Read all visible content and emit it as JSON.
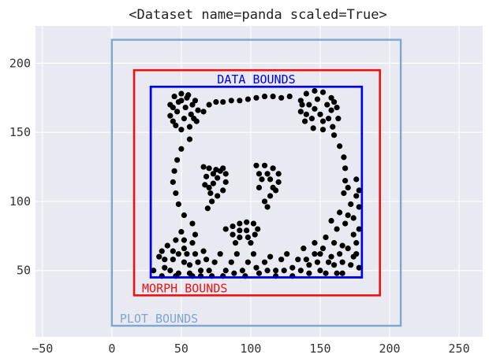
{
  "chart_data": {
    "type": "scatter",
    "title": "<Dataset name=panda scaled=True>",
    "xlabel": "",
    "ylabel": "",
    "xlim": [
      -55,
      267
    ],
    "ylim": [
      2,
      227
    ],
    "x_ticks": [
      -50,
      0,
      50,
      100,
      150,
      200,
      250
    ],
    "y_ticks": [
      50,
      100,
      150,
      200
    ],
    "grid": true,
    "background": "#e9e9f1",
    "point_color": "#000000",
    "bounds": [
      {
        "name": "plot-bounds",
        "label": "PLOT BOUNDS",
        "color": "#7da6d1",
        "x0": 0,
        "x1": 208,
        "y0": 10,
        "y1": 217
      },
      {
        "name": "morph-bounds",
        "label": "MORPH BOUNDS",
        "color": "#ee1111",
        "x0": 16,
        "x1": 193,
        "y0": 32,
        "y1": 195
      },
      {
        "name": "data-bounds",
        "label": "DATA BOUNDS",
        "color": "#0000e6",
        "x0": 28,
        "x1": 180,
        "y0": 45,
        "y1": 183
      }
    ],
    "series": [
      {
        "points": [
          [
            42,
            170
          ],
          [
            45,
            176
          ],
          [
            50,
            178
          ],
          [
            55,
            177
          ],
          [
            60,
            173
          ],
          [
            62,
            166
          ],
          [
            61,
            158
          ],
          [
            56,
            154
          ],
          [
            50,
            152
          ],
          [
            46,
            155
          ],
          [
            42,
            162
          ],
          [
            44,
            168
          ],
          [
            48,
            172
          ],
          [
            53,
            168
          ],
          [
            57,
            163
          ],
          [
            52,
            160
          ],
          [
            47,
            165
          ],
          [
            50,
            173
          ],
          [
            58,
            170
          ],
          [
            44,
            158
          ],
          [
            54,
            175
          ],
          [
            59,
            160
          ],
          [
            136,
            173
          ],
          [
            140,
            178
          ],
          [
            146,
            180
          ],
          [
            152,
            179
          ],
          [
            158,
            175
          ],
          [
            162,
            168
          ],
          [
            163,
            160
          ],
          [
            159,
            154
          ],
          [
            152,
            152
          ],
          [
            145,
            153
          ],
          [
            139,
            158
          ],
          [
            136,
            165
          ],
          [
            142,
            170
          ],
          [
            148,
            174
          ],
          [
            155,
            170
          ],
          [
            150,
            163
          ],
          [
            144,
            160
          ],
          [
            156,
            160
          ],
          [
            140,
            163
          ],
          [
            152,
            158
          ],
          [
            158,
            166
          ],
          [
            146,
            167
          ],
          [
            137,
            170
          ],
          [
            160,
            172
          ],
          [
            66,
            165
          ],
          [
            70,
            170
          ],
          [
            75,
            172
          ],
          [
            80,
            172
          ],
          [
            86,
            173
          ],
          [
            92,
            173
          ],
          [
            98,
            174
          ],
          [
            104,
            175
          ],
          [
            110,
            176
          ],
          [
            116,
            176
          ],
          [
            122,
            175
          ],
          [
            128,
            176
          ],
          [
            56,
            145
          ],
          [
            50,
            138
          ],
          [
            47,
            130
          ],
          [
            45,
            122
          ],
          [
            44,
            114
          ],
          [
            46,
            106
          ],
          [
            48,
            98
          ],
          [
            52,
            90
          ],
          [
            58,
            84
          ],
          [
            160,
            148
          ],
          [
            164,
            140
          ],
          [
            167,
            132
          ],
          [
            168,
            124
          ],
          [
            168,
            115
          ],
          [
            167,
            106
          ],
          [
            66,
            125
          ],
          [
            70,
            124
          ],
          [
            75,
            123
          ],
          [
            80,
            124
          ],
          [
            82,
            120
          ],
          [
            82,
            114
          ],
          [
            80,
            108
          ],
          [
            76,
            104
          ],
          [
            72,
            100
          ],
          [
            69,
            95
          ],
          [
            70,
            110
          ],
          [
            73,
            113
          ],
          [
            76,
            117
          ],
          [
            78,
            122
          ],
          [
            73,
            120
          ],
          [
            68,
            118
          ],
          [
            67,
            112
          ],
          [
            71,
            106
          ],
          [
            104,
            126
          ],
          [
            110,
            126
          ],
          [
            116,
            124
          ],
          [
            120,
            120
          ],
          [
            120,
            114
          ],
          [
            118,
            108
          ],
          [
            114,
            104
          ],
          [
            110,
            100
          ],
          [
            112,
            96
          ],
          [
            106,
            110
          ],
          [
            108,
            116
          ],
          [
            112,
            120
          ],
          [
            106,
            120
          ],
          [
            114,
            116
          ],
          [
            116,
            110
          ],
          [
            82,
            80
          ],
          [
            87,
            82
          ],
          [
            92,
            84
          ],
          [
            97,
            85
          ],
          [
            102,
            84
          ],
          [
            105,
            80
          ],
          [
            103,
            76
          ],
          [
            98,
            74
          ],
          [
            92,
            74
          ],
          [
            87,
            76
          ],
          [
            92,
            79
          ],
          [
            97,
            79
          ],
          [
            89,
            70
          ],
          [
            100,
            70
          ],
          [
            34,
            60
          ],
          [
            38,
            52
          ],
          [
            44,
            58
          ],
          [
            48,
            48
          ],
          [
            52,
            66
          ],
          [
            56,
            54
          ],
          [
            60,
            62
          ],
          [
            64,
            50
          ],
          [
            68,
            58
          ],
          [
            40,
            68
          ],
          [
            46,
            72
          ],
          [
            50,
            78
          ],
          [
            54,
            62
          ],
          [
            58,
            70
          ],
          [
            62,
            56
          ],
          [
            30,
            50
          ],
          [
            36,
            46
          ],
          [
            42,
            50
          ],
          [
            48,
            62
          ],
          [
            52,
            56
          ],
          [
            58,
            46
          ],
          [
            66,
            64
          ],
          [
            70,
            50
          ],
          [
            74,
            56
          ],
          [
            78,
            62
          ],
          [
            82,
            50
          ],
          [
            86,
            56
          ],
          [
            90,
            62
          ],
          [
            94,
            50
          ],
          [
            98,
            56
          ],
          [
            102,
            62
          ],
          [
            106,
            48
          ],
          [
            110,
            56
          ],
          [
            114,
            60
          ],
          [
            118,
            50
          ],
          [
            122,
            58
          ],
          [
            126,
            62
          ],
          [
            130,
            52
          ],
          [
            134,
            58
          ],
          [
            138,
            66
          ],
          [
            142,
            54
          ],
          [
            146,
            70
          ],
          [
            150,
            62
          ],
          [
            154,
            74
          ],
          [
            158,
            60
          ],
          [
            162,
            80
          ],
          [
            166,
            68
          ],
          [
            170,
            90
          ],
          [
            174,
            76
          ],
          [
            178,
            96
          ],
          [
            176,
            62
          ],
          [
            172,
            54
          ],
          [
            166,
            48
          ],
          [
            160,
            54
          ],
          [
            154,
            48
          ],
          [
            148,
            56
          ],
          [
            142,
            48
          ],
          [
            136,
            50
          ],
          [
            130,
            46
          ],
          [
            124,
            50
          ],
          [
            118,
            46
          ],
          [
            112,
            50
          ],
          [
            104,
            52
          ],
          [
            96,
            46
          ],
          [
            88,
            48
          ],
          [
            80,
            46
          ],
          [
            72,
            46
          ],
          [
            64,
            46
          ],
          [
            56,
            48
          ],
          [
            46,
            46
          ],
          [
            38,
            58
          ],
          [
            44,
            64
          ],
          [
            52,
            72
          ],
          [
            60,
            76
          ],
          [
            36,
            64
          ],
          [
            170,
            110
          ],
          [
            176,
            116
          ],
          [
            176,
            104
          ],
          [
            172,
            98
          ],
          [
            164,
            92
          ],
          [
            158,
            86
          ],
          [
            168,
            84
          ],
          [
            174,
            88
          ],
          [
            178,
            80
          ],
          [
            160,
            70
          ],
          [
            164,
            62
          ],
          [
            170,
            66
          ],
          [
            176,
            70
          ],
          [
            152,
            66
          ],
          [
            146,
            62
          ],
          [
            140,
            58
          ],
          [
            156,
            56
          ],
          [
            150,
            50
          ],
          [
            166,
            56
          ],
          [
            174,
            60
          ],
          [
            178,
            52
          ],
          [
            162,
            48
          ],
          [
            178,
            108
          ]
        ]
      }
    ]
  }
}
